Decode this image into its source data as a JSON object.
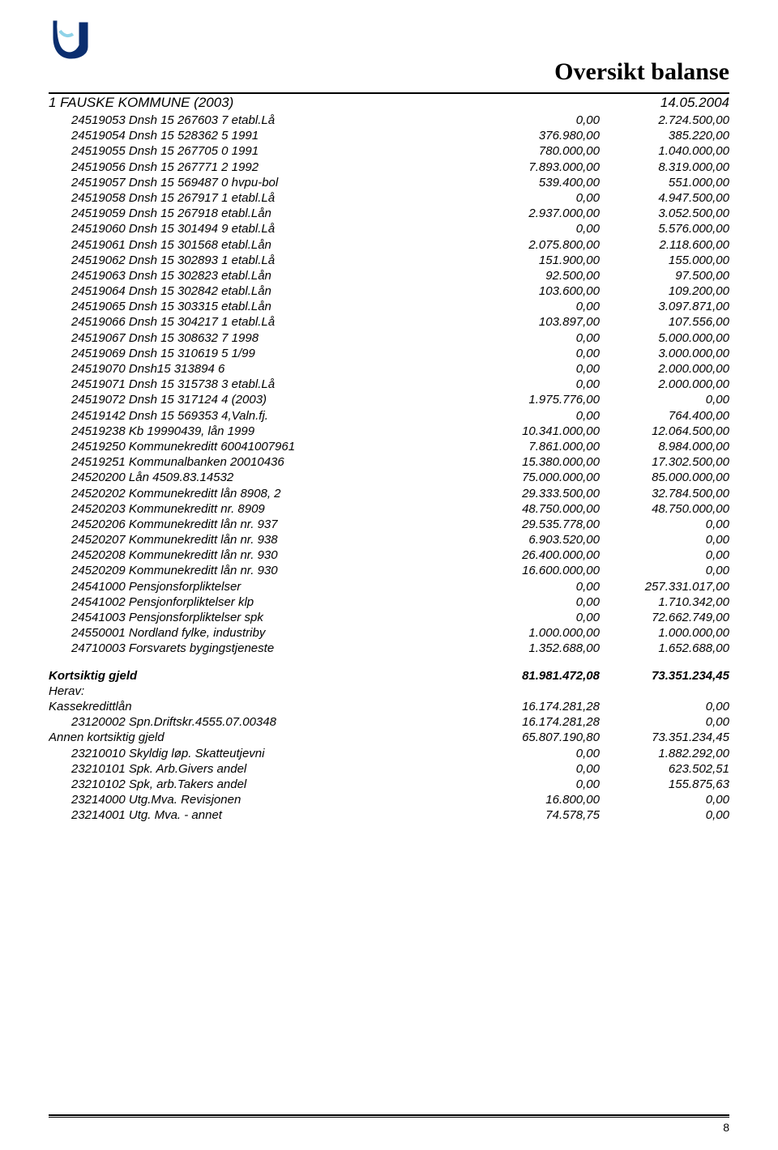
{
  "header": {
    "title": "Oversikt balanse",
    "subtitle_left": "1 FAUSKE KOMMUNE (2003)",
    "subtitle_right": "14.05.2004",
    "page_number": "8"
  },
  "logo": {
    "stroke": "#0b2e6f",
    "fill_light": "#8fd3e8"
  },
  "rows": [
    {
      "indent": true,
      "label": "24519053 Dnsh 15 267603 7  etabl.Lå",
      "v1": "0,00",
      "v2": "2.724.500,00"
    },
    {
      "indent": true,
      "label": "24519054 Dnsh 15 528362 5  1991",
      "v1": "376.980,00",
      "v2": "385.220,00"
    },
    {
      "indent": true,
      "label": "24519055 Dnsh 15 267705 0  1991",
      "v1": "780.000,00",
      "v2": "1.040.000,00"
    },
    {
      "indent": true,
      "label": "24519056 Dnsh 15 267771 2  1992",
      "v1": "7.893.000,00",
      "v2": "8.319.000,00"
    },
    {
      "indent": true,
      "label": "24519057 Dnsh 15 569487 0  hvpu-bol",
      "v1": "539.400,00",
      "v2": "551.000,00"
    },
    {
      "indent": true,
      "label": "24519058 Dnsh 15 267917 1  etabl.Lå",
      "v1": "0,00",
      "v2": "4.947.500,00"
    },
    {
      "indent": true,
      "label": "24519059 Dnsh 15 267918  etabl.Lån",
      "v1": "2.937.000,00",
      "v2": "3.052.500,00"
    },
    {
      "indent": true,
      "label": "24519060 Dnsh 15 301494 9  etabl.Lå",
      "v1": "0,00",
      "v2": "5.576.000,00"
    },
    {
      "indent": true,
      "label": "24519061 Dnsh 15 301568  etabl.Lån",
      "v1": "2.075.800,00",
      "v2": "2.118.600,00"
    },
    {
      "indent": true,
      "label": "24519062 Dnsh 15 302893 1  etabl.Lå",
      "v1": "151.900,00",
      "v2": "155.000,00"
    },
    {
      "indent": true,
      "label": "24519063 Dnsh 15 302823  etabl.Lån",
      "v1": "92.500,00",
      "v2": "97.500,00"
    },
    {
      "indent": true,
      "label": "24519064 Dnsh 15 302842  etabl.Lån",
      "v1": "103.600,00",
      "v2": "109.200,00"
    },
    {
      "indent": true,
      "label": "24519065 Dnsh 15 303315  etabl.Lån",
      "v1": "0,00",
      "v2": "3.097.871,00"
    },
    {
      "indent": true,
      "label": "24519066 Dnsh 15 304217 1  etabl.Lå",
      "v1": "103.897,00",
      "v2": "107.556,00"
    },
    {
      "indent": true,
      "label": "24519067 Dnsh 15 308632 7  1998",
      "v1": "0,00",
      "v2": "5.000.000,00"
    },
    {
      "indent": true,
      "label": "24519069 Dnsh  15 310619 5 1/99",
      "v1": "0,00",
      "v2": "3.000.000,00"
    },
    {
      "indent": true,
      "label": "24519070 Dnsh15 313894 6",
      "v1": "0,00",
      "v2": "2.000.000,00"
    },
    {
      "indent": true,
      "label": "24519071 Dnsh 15 315738 3  etabl.Lå",
      "v1": "0,00",
      "v2": "2.000.000,00"
    },
    {
      "indent": true,
      "label": "24519072 Dnsh 15 317124 4 (2003)",
      "v1": "1.975.776,00",
      "v2": "0,00"
    },
    {
      "indent": true,
      "label": "24519142 Dnsh 15 569353 4,Valn.fj.",
      "v1": "0,00",
      "v2": "764.400,00"
    },
    {
      "indent": true,
      "label": "24519238 Kb 19990439, lån 1999",
      "v1": "10.341.000,00",
      "v2": "12.064.500,00"
    },
    {
      "indent": true,
      "label": "24519250 Kommunekreditt 60041007961",
      "v1": "7.861.000,00",
      "v2": "8.984.000,00"
    },
    {
      "indent": true,
      "label": "24519251 Kommunalbanken 20010436",
      "v1": "15.380.000,00",
      "v2": "17.302.500,00"
    },
    {
      "indent": true,
      "label": "24520200 Lån 4509.83.14532",
      "v1": "75.000.000,00",
      "v2": "85.000.000,00"
    },
    {
      "indent": true,
      "label": "24520202 Kommunekreditt lån 8908, 2",
      "v1": "29.333.500,00",
      "v2": "32.784.500,00"
    },
    {
      "indent": true,
      "label": "24520203 Kommunekreditt nr. 8909",
      "v1": "48.750.000,00",
      "v2": "48.750.000,00"
    },
    {
      "indent": true,
      "label": "24520206 Kommunekreditt lån nr. 937",
      "v1": "29.535.778,00",
      "v2": "0,00"
    },
    {
      "indent": true,
      "label": "24520207 Kommunekreditt lån nr. 938",
      "v1": "6.903.520,00",
      "v2": "0,00"
    },
    {
      "indent": true,
      "label": "24520208 Kommunekreditt lån nr. 930",
      "v1": "26.400.000,00",
      "v2": "0,00"
    },
    {
      "indent": true,
      "label": "24520209 Kommunekreditt lån nr. 930",
      "v1": "16.600.000,00",
      "v2": "0,00"
    },
    {
      "indent": true,
      "label": "24541000 Pensjonsforpliktelser",
      "v1": "0,00",
      "v2": "257.331.017,00"
    },
    {
      "indent": true,
      "label": "24541002 Pensjonforpliktelser klp",
      "v1": "0,00",
      "v2": "1.710.342,00"
    },
    {
      "indent": true,
      "label": "24541003 Pensjonsforpliktelser spk",
      "v1": "0,00",
      "v2": "72.662.749,00"
    },
    {
      "indent": true,
      "label": "24550001 Nordland fylke, industriby",
      "v1": "1.000.000,00",
      "v2": "1.000.000,00"
    },
    {
      "indent": true,
      "label": "24710003 Forsvarets bygingstjeneste",
      "v1": "1.352.688,00",
      "v2": "1.652.688,00"
    }
  ],
  "short_term": {
    "heading": {
      "label": "Kortsiktig gjeld",
      "v1": "81.981.472,08",
      "v2": "73.351.234,45"
    },
    "herav": "Herav:",
    "rows": [
      {
        "indent": false,
        "bold": false,
        "label": "Kassekredittlån",
        "v1": "16.174.281,28",
        "v2": "0,00"
      },
      {
        "indent": true,
        "bold": false,
        "label": "23120002 Spn.Driftskr.4555.07.00348",
        "v1": "16.174.281,28",
        "v2": "0,00"
      },
      {
        "indent": false,
        "bold": false,
        "label": "Annen kortsiktig gjeld",
        "v1": "65.807.190,80",
        "v2": "73.351.234,45"
      },
      {
        "indent": true,
        "bold": false,
        "label": "23210010 Skyldig løp. Skatteutjevni",
        "v1": "0,00",
        "v2": "1.882.292,00"
      },
      {
        "indent": true,
        "bold": false,
        "label": "23210101 Spk. Arb.Givers andel",
        "v1": "0,00",
        "v2": "623.502,51"
      },
      {
        "indent": true,
        "bold": false,
        "label": "23210102 Spk, arb.Takers andel",
        "v1": "0,00",
        "v2": "155.875,63"
      },
      {
        "indent": true,
        "bold": false,
        "label": "23214000 Utg.Mva. Revisjonen",
        "v1": "16.800,00",
        "v2": "0,00"
      },
      {
        "indent": true,
        "bold": false,
        "label": "23214001 Utg. Mva. - annet",
        "v1": "74.578,75",
        "v2": "0,00"
      }
    ]
  }
}
